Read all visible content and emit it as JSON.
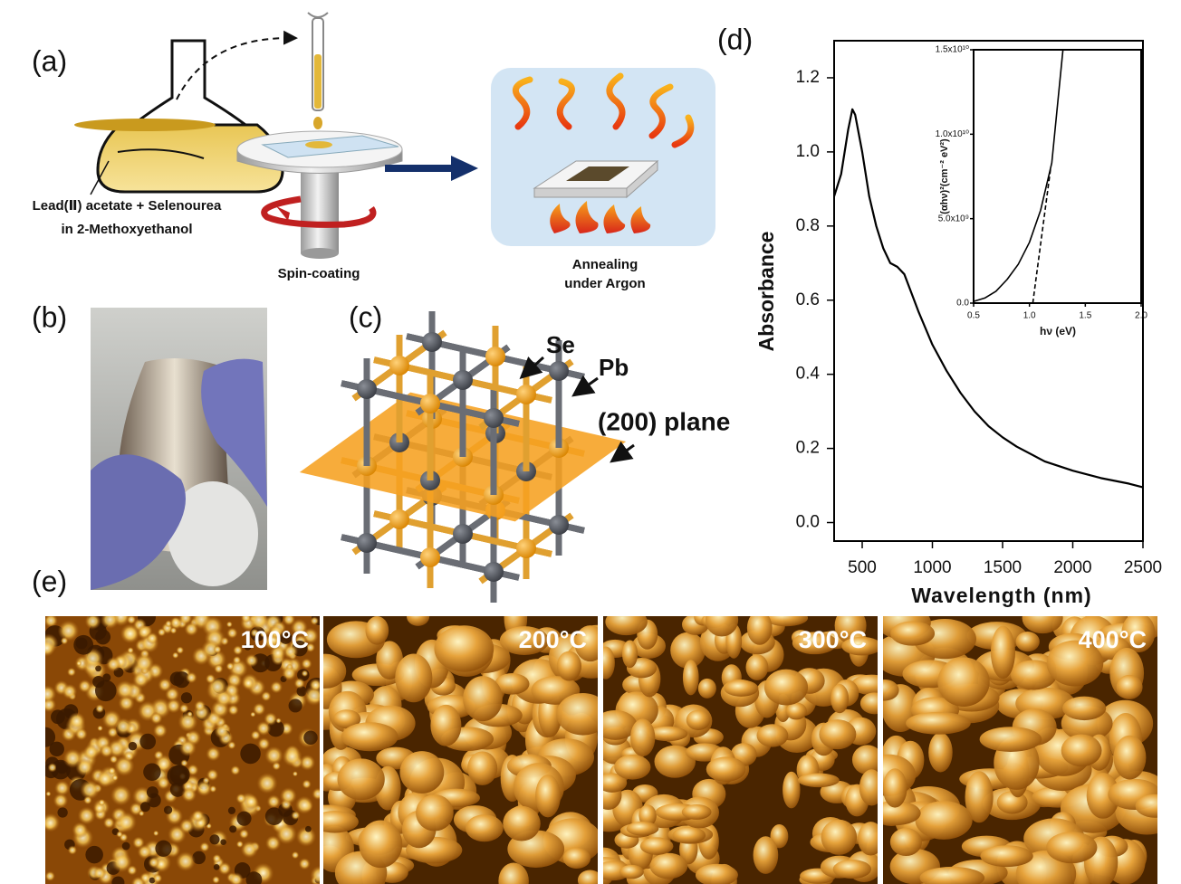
{
  "panel_a": {
    "label": "(a)",
    "precursor": [
      "Lead(Ⅱ) acetate + Selenourea",
      "in 2-Methoxyethanol"
    ],
    "spin_coating": "Spin-coating",
    "annealing": [
      "Annealing",
      "under Argon"
    ]
  },
  "panel_b": {
    "label": "(b)"
  },
  "panel_c": {
    "label": "(c)",
    "atoms": [
      "Se",
      "Pb"
    ],
    "plane": "(200) plane"
  },
  "panel_d": {
    "label": "(d)"
  },
  "chart_data": [
    {
      "type": "line",
      "x_label": "Wavelength (nm)",
      "y_label": "Absorbance",
      "xlim": [
        300,
        2500
      ],
      "ylim": [
        -0.05,
        1.3
      ],
      "xticks": [
        500,
        1000,
        1500,
        2000,
        2500
      ],
      "yticks": [
        {
          "value": 0,
          "label": "0.0"
        },
        0.2,
        0.4,
        0.6,
        0.8,
        {
          "value": 1,
          "label": "1.0"
        },
        1.2
      ],
      "x": [
        300,
        350,
        400,
        430,
        450,
        500,
        550,
        600,
        650,
        700,
        750,
        800,
        850,
        900,
        1000,
        1100,
        1200,
        1300,
        1400,
        1500,
        1600,
        1800,
        2000,
        2200,
        2400,
        2500
      ],
      "series": [
        {
          "color": "#000000",
          "values": [
            0.88,
            0.94,
            1.06,
            1.115,
            1.1,
            1.0,
            0.88,
            0.8,
            0.74,
            0.7,
            0.69,
            0.67,
            0.62,
            0.57,
            0.48,
            0.41,
            0.35,
            0.3,
            0.26,
            0.23,
            0.205,
            0.165,
            0.14,
            0.12,
            0.105,
            0.095
          ]
        }
      ]
    },
    {
      "type": "line",
      "x_label": "hν (eV)",
      "y_label": "(αhν)²(cm⁻² eV²)",
      "xlim": [
        0.5,
        2.0
      ],
      "ylim": [
        0,
        15000000000.0
      ],
      "xticks": [
        0.5,
        {
          "value": 1,
          "label": "1.0"
        },
        1.5,
        {
          "value": 2,
          "label": "2.0"
        }
      ],
      "yticks": [
        {
          "value": 0,
          "label": "0.0"
        },
        {
          "value": 5000000000.0,
          "label": "5.0x10⁹"
        },
        {
          "value": 10000000000.0,
          "label": "1.0x10¹⁰"
        },
        {
          "value": 15000000000.0,
          "label": "1.5x10¹⁰"
        }
      ],
      "series": [
        {
          "color": "#000000",
          "x": [
            0.5,
            0.6,
            0.7,
            0.8,
            0.9,
            1.0,
            1.1,
            1.2,
            1.3
          ],
          "values": [
            100000000.0,
            300000000.0,
            700000000.0,
            1400000000.0,
            2300000000.0,
            3600000000.0,
            5500000000.0,
            8300000000.0,
            15000000000.0
          ]
        },
        {
          "color": "#000000",
          "dashed": true,
          "x": [
            1.03,
            1.19
          ],
          "values": [
            0,
            8000000000.0
          ]
        }
      ]
    }
  ],
  "panel_e": {
    "label": "(e)",
    "temperatures": [
      "100°C",
      "200°C",
      "300°C",
      "400°C"
    ]
  }
}
